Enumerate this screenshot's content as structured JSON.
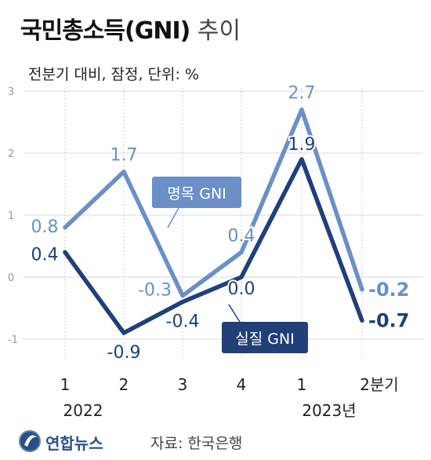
{
  "title": {
    "main": "국민총소득(GNI)",
    "suffix": "추이"
  },
  "subtitle": "전분기 대비, 잠정, 단위: %",
  "source": "자료: 한국은행",
  "logo": {
    "text": "연합뉴스",
    "icon": "yonhap-logo-icon"
  },
  "colors": {
    "nominal": "#6b8fc7",
    "real": "#213f78",
    "grid": "#d9d9d9",
    "tick": "#999999"
  },
  "chart_data": {
    "type": "line",
    "categories": [
      "1",
      "2",
      "3",
      "4",
      "1",
      "2분기"
    ],
    "year_labels": [
      "2022",
      "2023년"
    ],
    "yticks": [
      "3",
      "2",
      "1",
      "0",
      "-1"
    ],
    "ylim": [
      -1,
      3
    ],
    "series": [
      {
        "name": "명목 GNI",
        "values": [
          0.8,
          1.7,
          -0.3,
          0.4,
          2.7,
          -0.2
        ],
        "labels": [
          "0.8",
          "1.7",
          "-0.3",
          "0.4",
          "2.7",
          "-0.2"
        ]
      },
      {
        "name": "실질 GNI",
        "values": [
          0.4,
          -0.9,
          -0.4,
          0.0,
          1.9,
          -0.7
        ],
        "labels": [
          "0.4",
          "-0.9",
          "-0.4",
          "0.0",
          "1.9",
          "-0.7"
        ]
      }
    ]
  }
}
